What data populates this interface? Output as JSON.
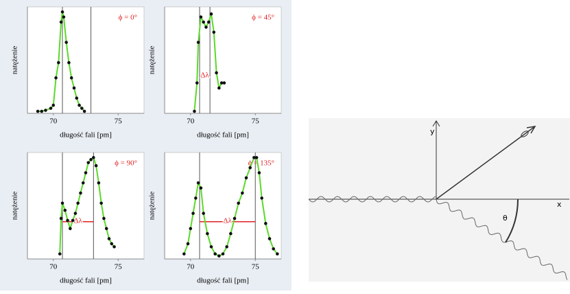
{
  "chart_data": [
    {
      "type": "line",
      "annotation": "ϕ = 0°",
      "xlabel": "długość fali [pm]",
      "ylabel": "natężenie",
      "x": [
        68.8,
        69.1,
        69.4,
        69.8,
        70.0,
        70.2,
        70.4,
        70.6,
        70.7,
        70.8,
        71.0,
        71.2,
        71.4,
        71.6,
        71.8,
        72.0,
        72.2,
        72.4
      ],
      "values": [
        0.02,
        0.02,
        0.03,
        0.05,
        0.08,
        0.35,
        0.5,
        0.9,
        1.0,
        0.95,
        0.7,
        0.5,
        0.35,
        0.25,
        0.15,
        0.08,
        0.05,
        0.02
      ],
      "vlines": [
        70.7,
        72.9
      ],
      "xlim": [
        68,
        77
      ],
      "ylim": [
        0,
        1.05
      ],
      "xticks": [
        70,
        75
      ],
      "color": "#5ad92a"
    },
    {
      "type": "line",
      "annotation": "ϕ = 45°",
      "xlabel": "długość fali [pm]",
      "ylabel": "natężenie",
      "delta_label": "Δλ",
      "x": [
        70.3,
        70.5,
        70.6,
        70.8,
        71.0,
        71.2,
        71.4,
        71.6,
        71.8,
        72.0,
        72.2,
        72.4,
        72.6
      ],
      "values": [
        0.02,
        0.3,
        0.7,
        0.95,
        0.9,
        0.85,
        0.9,
        0.98,
        0.8,
        0.4,
        0.25,
        0.3,
        0.3
      ],
      "vlines": [
        70.7,
        71.5
      ],
      "xlim": [
        68,
        77
      ],
      "ylim": [
        0,
        1.05
      ],
      "xticks": [
        70,
        75
      ],
      "color": "#5ad92a"
    },
    {
      "type": "line",
      "annotation": "ϕ = 90°",
      "xlabel": "długość fali [pm]",
      "ylabel": "natężenie",
      "delta_label": "Δλ",
      "x": [
        70.5,
        70.6,
        70.7,
        70.9,
        71.1,
        71.3,
        71.5,
        71.7,
        71.9,
        72.1,
        72.3,
        72.5,
        72.7,
        72.9,
        73.1,
        73.3,
        73.5,
        73.7,
        73.9,
        74.1,
        74.3,
        74.5,
        74.7
      ],
      "values": [
        0.05,
        0.4,
        0.55,
        0.48,
        0.38,
        0.3,
        0.38,
        0.45,
        0.55,
        0.65,
        0.75,
        0.85,
        0.95,
        0.98,
        1.0,
        0.92,
        0.75,
        0.55,
        0.4,
        0.3,
        0.2,
        0.15,
        0.12
      ],
      "vlines": [
        70.7,
        73.1
      ],
      "xlim": [
        68,
        77
      ],
      "ylim": [
        0,
        1.05
      ],
      "xticks": [
        70,
        75
      ],
      "color": "#5ad92a"
    },
    {
      "type": "line",
      "annotation": "ϕ = 135°",
      "xlabel": "długość fali [pm]",
      "ylabel": "natężenie",
      "delta_label": "Δλ",
      "x": [
        69.5,
        69.8,
        70.0,
        70.2,
        70.4,
        70.6,
        70.8,
        71.0,
        71.3,
        71.6,
        71.9,
        72.2,
        72.5,
        72.8,
        73.1,
        73.4,
        73.7,
        74.0,
        74.3,
        74.6,
        74.9,
        75.1,
        75.3,
        75.5,
        75.8,
        76.1,
        76.4,
        76.7
      ],
      "values": [
        0.05,
        0.15,
        0.3,
        0.45,
        0.6,
        0.75,
        0.7,
        0.45,
        0.25,
        0.12,
        0.05,
        0.03,
        0.05,
        0.12,
        0.25,
        0.4,
        0.55,
        0.65,
        0.8,
        0.9,
        1.0,
        1.0,
        0.85,
        0.6,
        0.35,
        0.2,
        0.1,
        0.05
      ],
      "vlines": [
        70.7,
        75.0
      ],
      "xlim": [
        68,
        77
      ],
      "ylim": [
        0,
        1.05
      ],
      "xticks": [
        70,
        75
      ],
      "color": "#5ad92a"
    }
  ],
  "diagram": {
    "y_label": "y",
    "x_label": "x",
    "angle_label": "θ"
  }
}
